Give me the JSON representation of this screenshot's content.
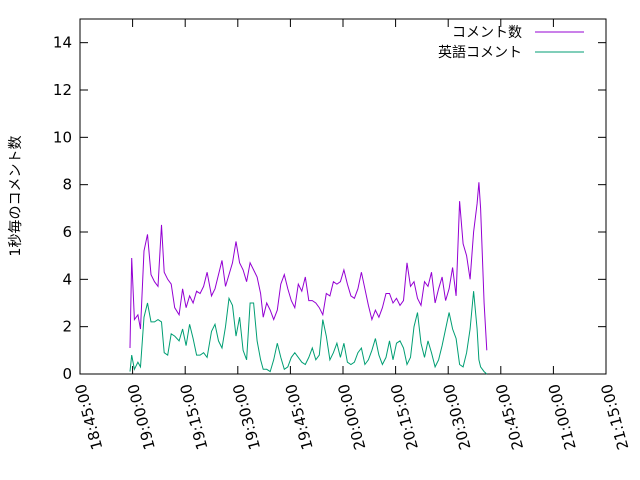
{
  "chart_data": {
    "type": "line",
    "title": "",
    "xlabel": "",
    "ylabel": "1秒毎のコメント数",
    "xlim": [
      "18:45:00",
      "21:15:00"
    ],
    "ylim": [
      0,
      15
    ],
    "x_ticks": [
      "18:45:00",
      "19:00:00",
      "19:15:00",
      "19:30:00",
      "19:45:00",
      "20:00:00",
      "20:15:00",
      "20:30:00",
      "20:45:00",
      "21:00:00",
      "21:15:00"
    ],
    "y_ticks": [
      0,
      2,
      4,
      6,
      8,
      10,
      12,
      14
    ],
    "grid": false,
    "legend_position": "top-right",
    "series": [
      {
        "name": "コメント数",
        "color": "#9400d3",
        "points": [
          [
            "18:59:15",
            1.1
          ],
          [
            "18:59:45",
            4.9
          ],
          [
            "19:00:30",
            2.3
          ],
          [
            "19:01:30",
            2.5
          ],
          [
            "19:02:15",
            1.9
          ],
          [
            "19:03:15",
            5.2
          ],
          [
            "19:04:15",
            5.9
          ],
          [
            "19:05:15",
            4.2
          ],
          [
            "19:06:15",
            3.9
          ],
          [
            "19:07:15",
            3.7
          ],
          [
            "19:08:15",
            6.3
          ],
          [
            "19:09:00",
            4.3
          ],
          [
            "19:10:00",
            4.0
          ],
          [
            "19:11:00",
            3.8
          ],
          [
            "19:12:00",
            2.8
          ],
          [
            "19:13:15",
            2.5
          ],
          [
            "19:14:15",
            3.6
          ],
          [
            "19:15:15",
            2.8
          ],
          [
            "19:16:15",
            3.3
          ],
          [
            "19:17:15",
            3.0
          ],
          [
            "19:18:15",
            3.5
          ],
          [
            "19:19:15",
            3.4
          ],
          [
            "19:20:15",
            3.7
          ],
          [
            "19:21:15",
            4.3
          ],
          [
            "19:22:30",
            3.3
          ],
          [
            "19:23:30",
            3.6
          ],
          [
            "19:24:30",
            4.2
          ],
          [
            "19:25:30",
            4.8
          ],
          [
            "19:26:30",
            3.7
          ],
          [
            "19:27:30",
            4.2
          ],
          [
            "19:28:30",
            4.7
          ],
          [
            "19:29:30",
            5.6
          ],
          [
            "19:30:30",
            4.7
          ],
          [
            "19:31:30",
            4.4
          ],
          [
            "19:32:30",
            3.9
          ],
          [
            "19:33:30",
            4.7
          ],
          [
            "19:34:30",
            4.4
          ],
          [
            "19:35:30",
            4.1
          ],
          [
            "19:36:30",
            3.4
          ],
          [
            "19:37:15",
            2.4
          ],
          [
            "19:38:15",
            3.0
          ],
          [
            "19:39:15",
            2.7
          ],
          [
            "19:40:15",
            2.3
          ],
          [
            "19:41:15",
            2.7
          ],
          [
            "19:42:15",
            3.8
          ],
          [
            "19:43:15",
            4.2
          ],
          [
            "19:44:15",
            3.6
          ],
          [
            "19:45:15",
            3.1
          ],
          [
            "19:46:15",
            2.8
          ],
          [
            "19:47:15",
            3.8
          ],
          [
            "19:48:15",
            3.5
          ],
          [
            "19:49:15",
            4.1
          ],
          [
            "19:50:15",
            3.1
          ],
          [
            "19:51:15",
            3.1
          ],
          [
            "19:52:15",
            3.0
          ],
          [
            "19:53:15",
            2.8
          ],
          [
            "19:54:15",
            2.5
          ],
          [
            "19:55:15",
            3.4
          ],
          [
            "19:56:15",
            3.3
          ],
          [
            "19:57:15",
            3.9
          ],
          [
            "19:58:15",
            3.8
          ],
          [
            "19:59:15",
            3.9
          ],
          [
            "20:00:15",
            4.4
          ],
          [
            "20:01:15",
            3.8
          ],
          [
            "20:02:15",
            3.3
          ],
          [
            "20:03:15",
            3.2
          ],
          [
            "20:04:15",
            3.6
          ],
          [
            "20:05:15",
            4.3
          ],
          [
            "20:06:15",
            3.6
          ],
          [
            "20:07:15",
            2.9
          ],
          [
            "20:08:15",
            2.3
          ],
          [
            "20:09:15",
            2.7
          ],
          [
            "20:10:15",
            2.4
          ],
          [
            "20:11:15",
            2.8
          ],
          [
            "20:12:15",
            3.4
          ],
          [
            "20:13:15",
            3.4
          ],
          [
            "20:14:15",
            3.0
          ],
          [
            "20:15:15",
            3.2
          ],
          [
            "20:16:15",
            2.9
          ],
          [
            "20:17:15",
            3.1
          ],
          [
            "20:18:15",
            4.7
          ],
          [
            "20:19:15",
            3.7
          ],
          [
            "20:20:15",
            3.9
          ],
          [
            "20:21:15",
            3.2
          ],
          [
            "20:22:15",
            2.9
          ],
          [
            "20:23:15",
            3.9
          ],
          [
            "20:24:15",
            3.7
          ],
          [
            "20:25:15",
            4.3
          ],
          [
            "20:26:15",
            3.0
          ],
          [
            "20:27:15",
            3.6
          ],
          [
            "20:28:15",
            4.1
          ],
          [
            "20:29:15",
            3.1
          ],
          [
            "20:30:15",
            3.6
          ],
          [
            "20:31:15",
            4.5
          ],
          [
            "20:32:15",
            3.3
          ],
          [
            "20:33:15",
            7.3
          ],
          [
            "20:34:15",
            5.5
          ],
          [
            "20:35:15",
            5.0
          ],
          [
            "20:36:15",
            4.0
          ],
          [
            "20:37:15",
            6.0
          ],
          [
            "20:38:15",
            7.2
          ],
          [
            "20:38:45",
            8.1
          ],
          [
            "20:39:15",
            7.0
          ],
          [
            "20:40:15",
            3.0
          ],
          [
            "20:41:00",
            1.0
          ]
        ]
      },
      {
        "name": "英語コメント",
        "color": "#009e73",
        "points": [
          [
            "18:59:15",
            0.1
          ],
          [
            "18:59:45",
            0.8
          ],
          [
            "19:00:30",
            0.2
          ],
          [
            "19:01:30",
            0.5
          ],
          [
            "19:02:15",
            0.3
          ],
          [
            "19:03:15",
            2.4
          ],
          [
            "19:04:15",
            3.0
          ],
          [
            "19:05:15",
            2.2
          ],
          [
            "19:06:15",
            2.2
          ],
          [
            "19:07:15",
            2.3
          ],
          [
            "19:08:15",
            2.2
          ],
          [
            "19:09:00",
            0.9
          ],
          [
            "19:10:00",
            0.8
          ],
          [
            "19:11:00",
            1.7
          ],
          [
            "19:12:00",
            1.6
          ],
          [
            "19:13:15",
            1.4
          ],
          [
            "19:14:15",
            1.9
          ],
          [
            "19:15:15",
            1.2
          ],
          [
            "19:16:15",
            2.1
          ],
          [
            "19:17:15",
            1.5
          ],
          [
            "19:18:15",
            0.8
          ],
          [
            "19:19:15",
            0.8
          ],
          [
            "19:20:15",
            0.9
          ],
          [
            "19:21:15",
            0.7
          ],
          [
            "19:22:30",
            1.8
          ],
          [
            "19:23:30",
            2.1
          ],
          [
            "19:24:30",
            1.4
          ],
          [
            "19:25:30",
            1.1
          ],
          [
            "19:26:30",
            2.0
          ],
          [
            "19:27:30",
            3.2
          ],
          [
            "19:28:30",
            2.9
          ],
          [
            "19:29:30",
            1.6
          ],
          [
            "19:30:30",
            2.4
          ],
          [
            "19:31:30",
            1.0
          ],
          [
            "19:32:30",
            0.6
          ],
          [
            "19:33:30",
            3.0
          ],
          [
            "19:34:30",
            3.0
          ],
          [
            "19:35:30",
            1.4
          ],
          [
            "19:36:30",
            0.6
          ],
          [
            "19:37:15",
            0.2
          ],
          [
            "19:38:15",
            0.2
          ],
          [
            "19:39:15",
            0.1
          ],
          [
            "19:40:15",
            0.6
          ],
          [
            "19:41:15",
            1.3
          ],
          [
            "19:42:15",
            0.7
          ],
          [
            "19:43:15",
            0.2
          ],
          [
            "19:44:15",
            0.3
          ],
          [
            "19:45:15",
            0.7
          ],
          [
            "19:46:15",
            0.9
          ],
          [
            "19:47:15",
            0.7
          ],
          [
            "19:48:15",
            0.5
          ],
          [
            "19:49:15",
            0.4
          ],
          [
            "19:50:15",
            0.7
          ],
          [
            "19:51:15",
            1.1
          ],
          [
            "19:52:15",
            0.6
          ],
          [
            "19:53:15",
            0.8
          ],
          [
            "19:54:15",
            2.3
          ],
          [
            "19:55:15",
            1.6
          ],
          [
            "19:56:15",
            0.6
          ],
          [
            "19:57:15",
            0.9
          ],
          [
            "19:58:15",
            1.3
          ],
          [
            "19:59:15",
            0.7
          ],
          [
            "20:00:15",
            1.3
          ],
          [
            "20:01:15",
            0.5
          ],
          [
            "20:02:15",
            0.4
          ],
          [
            "20:03:15",
            0.5
          ],
          [
            "20:04:15",
            0.9
          ],
          [
            "20:05:15",
            1.1
          ],
          [
            "20:06:15",
            0.4
          ],
          [
            "20:07:15",
            0.6
          ],
          [
            "20:08:15",
            1.0
          ],
          [
            "20:09:15",
            1.5
          ],
          [
            "20:10:15",
            0.8
          ],
          [
            "20:11:15",
            0.4
          ],
          [
            "20:12:15",
            0.7
          ],
          [
            "20:13:15",
            1.4
          ],
          [
            "20:14:15",
            0.6
          ],
          [
            "20:15:15",
            1.3
          ],
          [
            "20:16:15",
            1.4
          ],
          [
            "20:17:15",
            1.1
          ],
          [
            "20:18:15",
            0.4
          ],
          [
            "20:19:15",
            0.7
          ],
          [
            "20:20:15",
            2.0
          ],
          [
            "20:21:15",
            2.6
          ],
          [
            "20:22:15",
            1.3
          ],
          [
            "20:23:15",
            0.7
          ],
          [
            "20:24:15",
            1.4
          ],
          [
            "20:25:15",
            0.9
          ],
          [
            "20:26:15",
            0.3
          ],
          [
            "20:27:15",
            0.6
          ],
          [
            "20:28:15",
            1.2
          ],
          [
            "20:29:15",
            1.9
          ],
          [
            "20:30:15",
            2.6
          ],
          [
            "20:31:15",
            1.9
          ],
          [
            "20:32:15",
            1.5
          ],
          [
            "20:33:15",
            0.4
          ],
          [
            "20:34:15",
            0.3
          ],
          [
            "20:35:15",
            0.9
          ],
          [
            "20:36:15",
            1.9
          ],
          [
            "20:37:15",
            3.5
          ],
          [
            "20:38:15",
            1.9
          ],
          [
            "20:38:45",
            0.6
          ],
          [
            "20:39:15",
            0.3
          ],
          [
            "20:40:15",
            0.1
          ],
          [
            "20:41:00",
            0.0
          ]
        ]
      }
    ]
  }
}
